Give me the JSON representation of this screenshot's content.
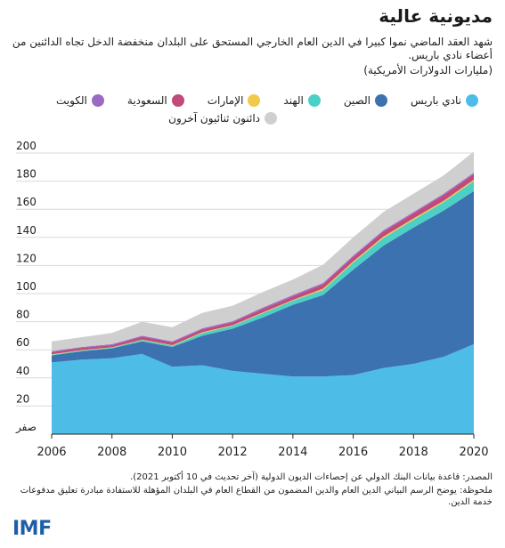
{
  "title": "مديونية عالية",
  "subtitle": "شهد العقد الماضي نموا كبيرا في الدين العام الخارجي المستحق على البلدان منخفضة الدخل تجاه الدائنين من أعضاء نادي باريس.",
  "unit": "(مليارات الدولارات الأمريكية)",
  "source": "المصدر: قاعدة بيانات البنك الدولي عن إحصاءات الديون الدولية (آخر تحديث في 10 أكتوبر 2021).",
  "note": "ملحوظة: يوضح الرسم البياني الدين العام والدين المضمون من القطاع العام في البلدان المؤهلة للاستفادة مبادرة تعليق مدفوعات خدمة الدين.",
  "logo": "IMF",
  "chart_data": {
    "type": "area",
    "stacked": true,
    "x": [
      2006,
      2007,
      2008,
      2009,
      2010,
      2011,
      2012,
      2013,
      2014,
      2015,
      2016,
      2017,
      2018,
      2019,
      2020
    ],
    "x_ticks": [
      "2006",
      "2008",
      "2010",
      "2012",
      "2014",
      "2016",
      "2018",
      "2020"
    ],
    "y_ticks": [
      "صفر",
      "20",
      "40",
      "60",
      "80",
      "100",
      "120",
      "140",
      "160",
      "180",
      "200"
    ],
    "ylim": [
      0,
      200
    ],
    "grid": true,
    "legend_position": "top",
    "series": [
      {
        "name": "نادي باريس",
        "color": "#4dbde8",
        "values": [
          51,
          53,
          54,
          57,
          48,
          49,
          45,
          43,
          41,
          41,
          42,
          47,
          50,
          55,
          64
        ]
      },
      {
        "name": "الصين",
        "color": "#3d72b0",
        "values": [
          5,
          6,
          7,
          9,
          14,
          21,
          30,
          40,
          51,
          58,
          75,
          87,
          97,
          104,
          109
        ]
      },
      {
        "name": "الهند",
        "color": "#4ccfc6",
        "values": [
          0.5,
          0.5,
          0.5,
          1.0,
          1.0,
          2.0,
          2.0,
          3.0,
          3.0,
          3.5,
          5.0,
          5.5,
          5.5,
          6.0,
          7.0
        ]
      },
      {
        "name": "الإمارات",
        "color": "#f1c94c",
        "values": [
          0.3,
          0.3,
          0.3,
          0.3,
          0.3,
          0.5,
          0.5,
          0.5,
          0.5,
          1.0,
          1.0,
          1.0,
          1.0,
          1.0,
          1.0
        ]
      },
      {
        "name": "السعودية",
        "color": "#c04a7a",
        "values": [
          1.5,
          1.5,
          1.5,
          2.0,
          2.0,
          2.0,
          2.0,
          2.5,
          2.5,
          3.0,
          3.0,
          3.5,
          3.5,
          4.0,
          4.0
        ]
      },
      {
        "name": "الكويت",
        "color": "#9b6bc4",
        "values": [
          0.7,
          0.7,
          0.7,
          0.7,
          0.7,
          0.8,
          0.8,
          1.0,
          1.0,
          1.0,
          1.0,
          1.0,
          1.0,
          1.0,
          1.0
        ]
      },
      {
        "name": "دائنون ثنائيون آخرون",
        "color": "#cfcfcf",
        "values": [
          7,
          7,
          8,
          10,
          10,
          11,
          11,
          11,
          11,
          13,
          13,
          13,
          13,
          13,
          15
        ]
      }
    ]
  }
}
